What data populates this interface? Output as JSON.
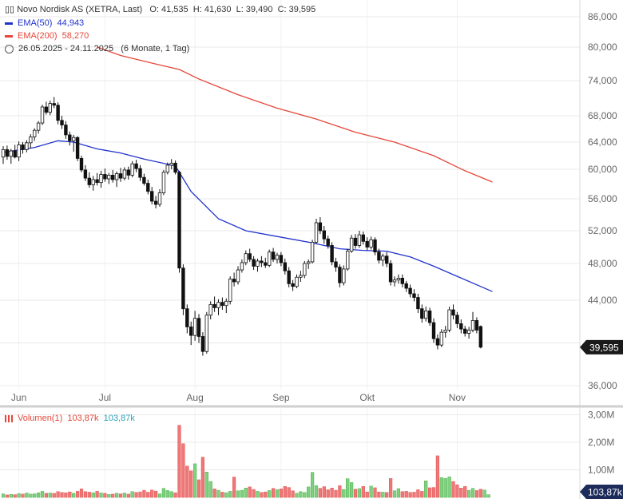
{
  "legend": {
    "title": "Novo Nordisk AS (XETRA, Last)",
    "ohlc": "O: 41,535  H: 41,630  L: 39,490  C: 39,595",
    "ema50_label": "EMA(50)",
    "ema50_value": "44,943",
    "ema200_label": "EMA(200)",
    "ema200_value": "58,270",
    "range": "26.05.2025 - 24.11.2025",
    "range_detail": "(6 Monate, 1 Tag)"
  },
  "volume_legend": {
    "label": "Volumen(1)",
    "value_red": "103,87k",
    "value_teal": "103,87k"
  },
  "last_price_tag": "39,595",
  "last_volume_tag": "103,87k",
  "colors": {
    "up": "#3aa63a",
    "down": "#111111",
    "ema50": "#2233cc",
    "ema200": "#e5473a",
    "vol_up": "#7fd07f",
    "vol_down": "#ee7777",
    "grid": "#e8e8e8",
    "tag_bg": "#1a1a1a"
  },
  "chart_data": [
    {
      "type": "candlestick",
      "title": "Novo Nordisk AS (XETRA, Last)",
      "ylim": [
        35,
        87
      ],
      "y_ticks": [
        36,
        40,
        44,
        48,
        52,
        56,
        60,
        64,
        68,
        74,
        80,
        86
      ],
      "y_tick_labels": [
        "36,000",
        "",
        "44,000",
        "48,000",
        "52,000",
        "56,000",
        "60,000",
        "64,000",
        "68,000",
        "74,000",
        "80,000",
        "86,000"
      ],
      "x_months": [
        {
          "label": "Jun",
          "index": 4
        },
        {
          "label": "Jul",
          "index": 26
        },
        {
          "label": "Aug",
          "index": 49
        },
        {
          "label": "Sep",
          "index": 71
        },
        {
          "label": "Okt",
          "index": 93
        },
        {
          "label": "Nov",
          "index": 116
        }
      ],
      "candles": [
        [
          61.8,
          63.4,
          60.8,
          62.9
        ],
        [
          62.9,
          63.5,
          61.4,
          61.9
        ],
        [
          61.9,
          63.0,
          60.8,
          62.7
        ],
        [
          62.7,
          63.6,
          61.6,
          61.8
        ],
        [
          61.8,
          64.1,
          61.2,
          63.6
        ],
        [
          63.6,
          64.0,
          62.3,
          62.9
        ],
        [
          62.9,
          64.3,
          62.5,
          63.9
        ],
        [
          63.9,
          65.2,
          63.1,
          64.8
        ],
        [
          64.8,
          66.1,
          64.2,
          65.8
        ],
        [
          65.8,
          67.2,
          65.3,
          66.9
        ],
        [
          66.9,
          69.9,
          66.6,
          69.5
        ],
        [
          69.5,
          70.4,
          68.2,
          68.6
        ],
        [
          68.6,
          70.6,
          68.1,
          70.1
        ],
        [
          70.1,
          71.2,
          69.3,
          69.8
        ],
        [
          69.8,
          70.3,
          66.7,
          67.3
        ],
        [
          67.3,
          68.0,
          66.0,
          66.6
        ],
        [
          66.6,
          67.2,
          64.5,
          65.1
        ],
        [
          65.1,
          65.6,
          63.5,
          64.2
        ],
        [
          64.2,
          65.1,
          62.6,
          64.7
        ],
        [
          64.7,
          64.9,
          61.2,
          61.6
        ],
        [
          61.6,
          62.0,
          59.6,
          59.9
        ],
        [
          59.9,
          60.6,
          58.4,
          58.8
        ],
        [
          58.8,
          59.6,
          57.5,
          57.9
        ],
        [
          57.9,
          59.1,
          57.1,
          58.6
        ],
        [
          58.6,
          59.5,
          57.8,
          58.2
        ],
        [
          58.2,
          59.8,
          57.5,
          59.3
        ],
        [
          59.3,
          60.1,
          58.3,
          58.7
        ],
        [
          58.7,
          59.5,
          58.0,
          59.2
        ],
        [
          59.2,
          59.9,
          58.2,
          58.6
        ],
        [
          58.6,
          59.7,
          57.6,
          59.4
        ],
        [
          59.4,
          60.2,
          58.3,
          58.8
        ],
        [
          58.8,
          60.3,
          58.5,
          59.9
        ],
        [
          59.9,
          60.4,
          58.6,
          59.2
        ],
        [
          59.2,
          61.2,
          58.9,
          60.8
        ],
        [
          60.8,
          61.4,
          59.6,
          60.1
        ],
        [
          60.1,
          60.6,
          58.4,
          58.9
        ],
        [
          58.9,
          59.4,
          57.8,
          58.1
        ],
        [
          58.1,
          58.6,
          56.6,
          57.0
        ],
        [
          57.0,
          57.6,
          55.3,
          55.7
        ],
        [
          55.7,
          56.4,
          54.8,
          55.3
        ],
        [
          55.3,
          57.3,
          55.0,
          56.8
        ],
        [
          56.8,
          59.9,
          56.5,
          59.6
        ],
        [
          59.6,
          61.0,
          59.3,
          60.6
        ],
        [
          60.6,
          61.5,
          60.0,
          60.9
        ],
        [
          60.9,
          61.3,
          59.3,
          59.6
        ],
        [
          59.6,
          59.8,
          47.0,
          47.5
        ],
        [
          47.5,
          47.9,
          42.6,
          43.2
        ],
        [
          43.2,
          43.6,
          40.9,
          41.5
        ],
        [
          41.5,
          42.0,
          39.8,
          40.7
        ],
        [
          40.7,
          43.0,
          40.2,
          42.3
        ],
        [
          42.3,
          42.7,
          40.0,
          40.6
        ],
        [
          40.6,
          41.0,
          38.8,
          39.2
        ],
        [
          39.2,
          42.9,
          39.0,
          42.6
        ],
        [
          42.6,
          43.9,
          42.2,
          43.6
        ],
        [
          43.6,
          44.4,
          42.9,
          43.3
        ],
        [
          43.3,
          44.1,
          42.6,
          43.8
        ],
        [
          43.8,
          44.3,
          43.1,
          43.5
        ],
        [
          43.5,
          44.2,
          42.8,
          43.9
        ],
        [
          43.9,
          46.6,
          43.6,
          46.3
        ],
        [
          46.3,
          47.0,
          45.5,
          46.0
        ],
        [
          46.0,
          47.7,
          45.7,
          47.3
        ],
        [
          47.3,
          48.5,
          47.0,
          48.1
        ],
        [
          48.1,
          49.6,
          47.8,
          49.2
        ],
        [
          49.2,
          49.8,
          48.2,
          48.5
        ],
        [
          48.5,
          48.9,
          47.3,
          47.7
        ],
        [
          47.7,
          48.6,
          47.1,
          48.3
        ],
        [
          48.3,
          48.9,
          47.6,
          48.1
        ],
        [
          48.1,
          48.7,
          47.5,
          47.8
        ],
        [
          47.8,
          49.7,
          47.6,
          49.4
        ],
        [
          49.4,
          49.9,
          48.2,
          48.5
        ],
        [
          48.5,
          49.3,
          48.0,
          49.0
        ],
        [
          49.0,
          49.4,
          47.7,
          48.1
        ],
        [
          48.1,
          48.6,
          46.8,
          47.2
        ],
        [
          47.2,
          47.6,
          45.4,
          45.8
        ],
        [
          45.8,
          46.2,
          45.0,
          45.5
        ],
        [
          45.5,
          46.8,
          45.3,
          46.5
        ],
        [
          46.5,
          47.2,
          46.0,
          46.7
        ],
        [
          46.7,
          48.3,
          46.4,
          48.0
        ],
        [
          48.0,
          48.5,
          47.4,
          48.2
        ],
        [
          48.2,
          50.9,
          48.0,
          50.6
        ],
        [
          50.6,
          53.5,
          50.4,
          53.0
        ],
        [
          53.0,
          53.7,
          51.6,
          52.0
        ],
        [
          52.0,
          52.6,
          50.4,
          51.0
        ],
        [
          51.0,
          51.4,
          49.8,
          50.2
        ],
        [
          50.2,
          50.6,
          47.8,
          48.2
        ],
        [
          48.2,
          48.7,
          47.1,
          47.6
        ],
        [
          47.6,
          47.9,
          45.4,
          45.9
        ],
        [
          45.9,
          47.8,
          45.6,
          47.4
        ],
        [
          47.4,
          49.8,
          47.2,
          49.5
        ],
        [
          49.5,
          51.5,
          49.3,
          51.1
        ],
        [
          51.1,
          51.6,
          49.8,
          50.2
        ],
        [
          50.2,
          52.0,
          49.9,
          51.5
        ],
        [
          51.5,
          51.9,
          50.3,
          50.7
        ],
        [
          50.7,
          51.2,
          49.6,
          50.0
        ],
        [
          50.0,
          51.3,
          49.7,
          50.9
        ],
        [
          50.9,
          51.2,
          49.0,
          49.4
        ],
        [
          49.4,
          49.8,
          48.0,
          48.4
        ],
        [
          48.4,
          49.2,
          47.7,
          48.9
        ],
        [
          48.9,
          49.4,
          47.6,
          48.0
        ],
        [
          48.0,
          48.4,
          45.6,
          46.0
        ],
        [
          46.0,
          46.6,
          45.5,
          46.2
        ],
        [
          46.2,
          46.8,
          45.8,
          46.4
        ],
        [
          46.4,
          46.8,
          45.4,
          45.8
        ],
        [
          45.8,
          46.1,
          44.9,
          45.3
        ],
        [
          45.3,
          45.7,
          44.3,
          44.7
        ],
        [
          44.7,
          45.2,
          43.9,
          44.3
        ],
        [
          44.3,
          44.7,
          42.8,
          43.2
        ],
        [
          43.2,
          43.6,
          41.9,
          42.3
        ],
        [
          42.3,
          43.4,
          42.0,
          43.0
        ],
        [
          43.0,
          43.3,
          41.6,
          41.9
        ],
        [
          41.9,
          42.3,
          40.0,
          40.4
        ],
        [
          40.4,
          40.8,
          39.4,
          39.8
        ],
        [
          39.8,
          41.3,
          39.6,
          41.0
        ],
        [
          41.0,
          41.6,
          40.5,
          41.2
        ],
        [
          41.2,
          43.4,
          41.0,
          43.1
        ],
        [
          43.1,
          43.6,
          42.2,
          42.6
        ],
        [
          42.6,
          42.9,
          41.4,
          41.8
        ],
        [
          41.8,
          42.2,
          40.9,
          41.3
        ],
        [
          41.3,
          41.6,
          40.6,
          40.9
        ],
        [
          40.9,
          41.5,
          40.4,
          41.2
        ],
        [
          41.2,
          42.9,
          41.0,
          42.1
        ],
        [
          42.1,
          42.4,
          40.9,
          41.2
        ],
        [
          41.54,
          41.63,
          39.49,
          39.6
        ]
      ],
      "ema50": [
        [
          0,
          62.5
        ],
        [
          8,
          63.2
        ],
        [
          14,
          64.2
        ],
        [
          18,
          64.0
        ],
        [
          24,
          63.0
        ],
        [
          30,
          62.4
        ],
        [
          36,
          61.5
        ],
        [
          44,
          60.5
        ],
        [
          48,
          57.0
        ],
        [
          55,
          53.5
        ],
        [
          62,
          52.0
        ],
        [
          70,
          51.3
        ],
        [
          78,
          50.6
        ],
        [
          86,
          49.8
        ],
        [
          92,
          49.6
        ],
        [
          98,
          49.5
        ],
        [
          104,
          48.8
        ],
        [
          110,
          47.7
        ],
        [
          116,
          46.6
        ],
        [
          122,
          45.5
        ],
        [
          125,
          44.94
        ]
      ],
      "ema200": [
        [
          24,
          80.0
        ],
        [
          30,
          78.5
        ],
        [
          40,
          76.8
        ],
        [
          45,
          76.0
        ],
        [
          50,
          74.3
        ],
        [
          60,
          71.6
        ],
        [
          70,
          69.3
        ],
        [
          80,
          67.5
        ],
        [
          90,
          65.5
        ],
        [
          100,
          64.0
        ],
        [
          110,
          62.0
        ],
        [
          118,
          59.8
        ],
        [
          125,
          58.27
        ]
      ]
    },
    {
      "type": "bar",
      "title": "Volumen(1)",
      "ylim": [
        0,
        3.1
      ],
      "y_ticks": [
        1,
        2,
        3
      ],
      "y_tick_labels": [
        "1,00M",
        "2,00M",
        "3,00M"
      ],
      "unit": "M",
      "values": [
        0.13,
        0.09,
        0.11,
        0.1,
        0.14,
        0.12,
        0.16,
        0.12,
        0.13,
        0.17,
        0.22,
        0.15,
        0.16,
        0.15,
        0.21,
        0.18,
        0.17,
        0.2,
        0.15,
        0.22,
        0.31,
        0.21,
        0.19,
        0.17,
        0.22,
        0.16,
        0.15,
        0.11,
        0.12,
        0.15,
        0.13,
        0.16,
        0.12,
        0.21,
        0.18,
        0.2,
        0.26,
        0.19,
        0.27,
        0.23,
        0.13,
        0.33,
        0.25,
        0.21,
        0.17,
        2.62,
        1.95,
        1.14,
        0.96,
        1.22,
        0.64,
        1.46,
        0.92,
        0.58,
        0.31,
        0.26,
        0.19,
        0.17,
        0.22,
        0.74,
        0.24,
        0.26,
        0.34,
        0.38,
        0.29,
        0.22,
        0.18,
        0.2,
        0.25,
        0.33,
        0.28,
        0.31,
        0.4,
        0.36,
        0.24,
        0.15,
        0.21,
        0.18,
        0.38,
        0.91,
        0.43,
        0.33,
        0.39,
        0.28,
        0.34,
        0.26,
        0.43,
        0.29,
        0.68,
        0.54,
        0.3,
        0.32,
        0.4,
        0.2,
        0.41,
        0.35,
        0.2,
        0.19,
        0.18,
        0.69,
        0.24,
        0.32,
        0.21,
        0.22,
        0.18,
        0.19,
        0.28,
        0.22,
        0.6,
        0.35,
        0.36,
        1.51,
        0.72,
        0.69,
        0.75,
        0.58,
        0.46,
        0.34,
        0.4,
        0.26,
        0.33,
        0.25,
        0.3,
        0.27,
        0.1
      ]
    }
  ]
}
